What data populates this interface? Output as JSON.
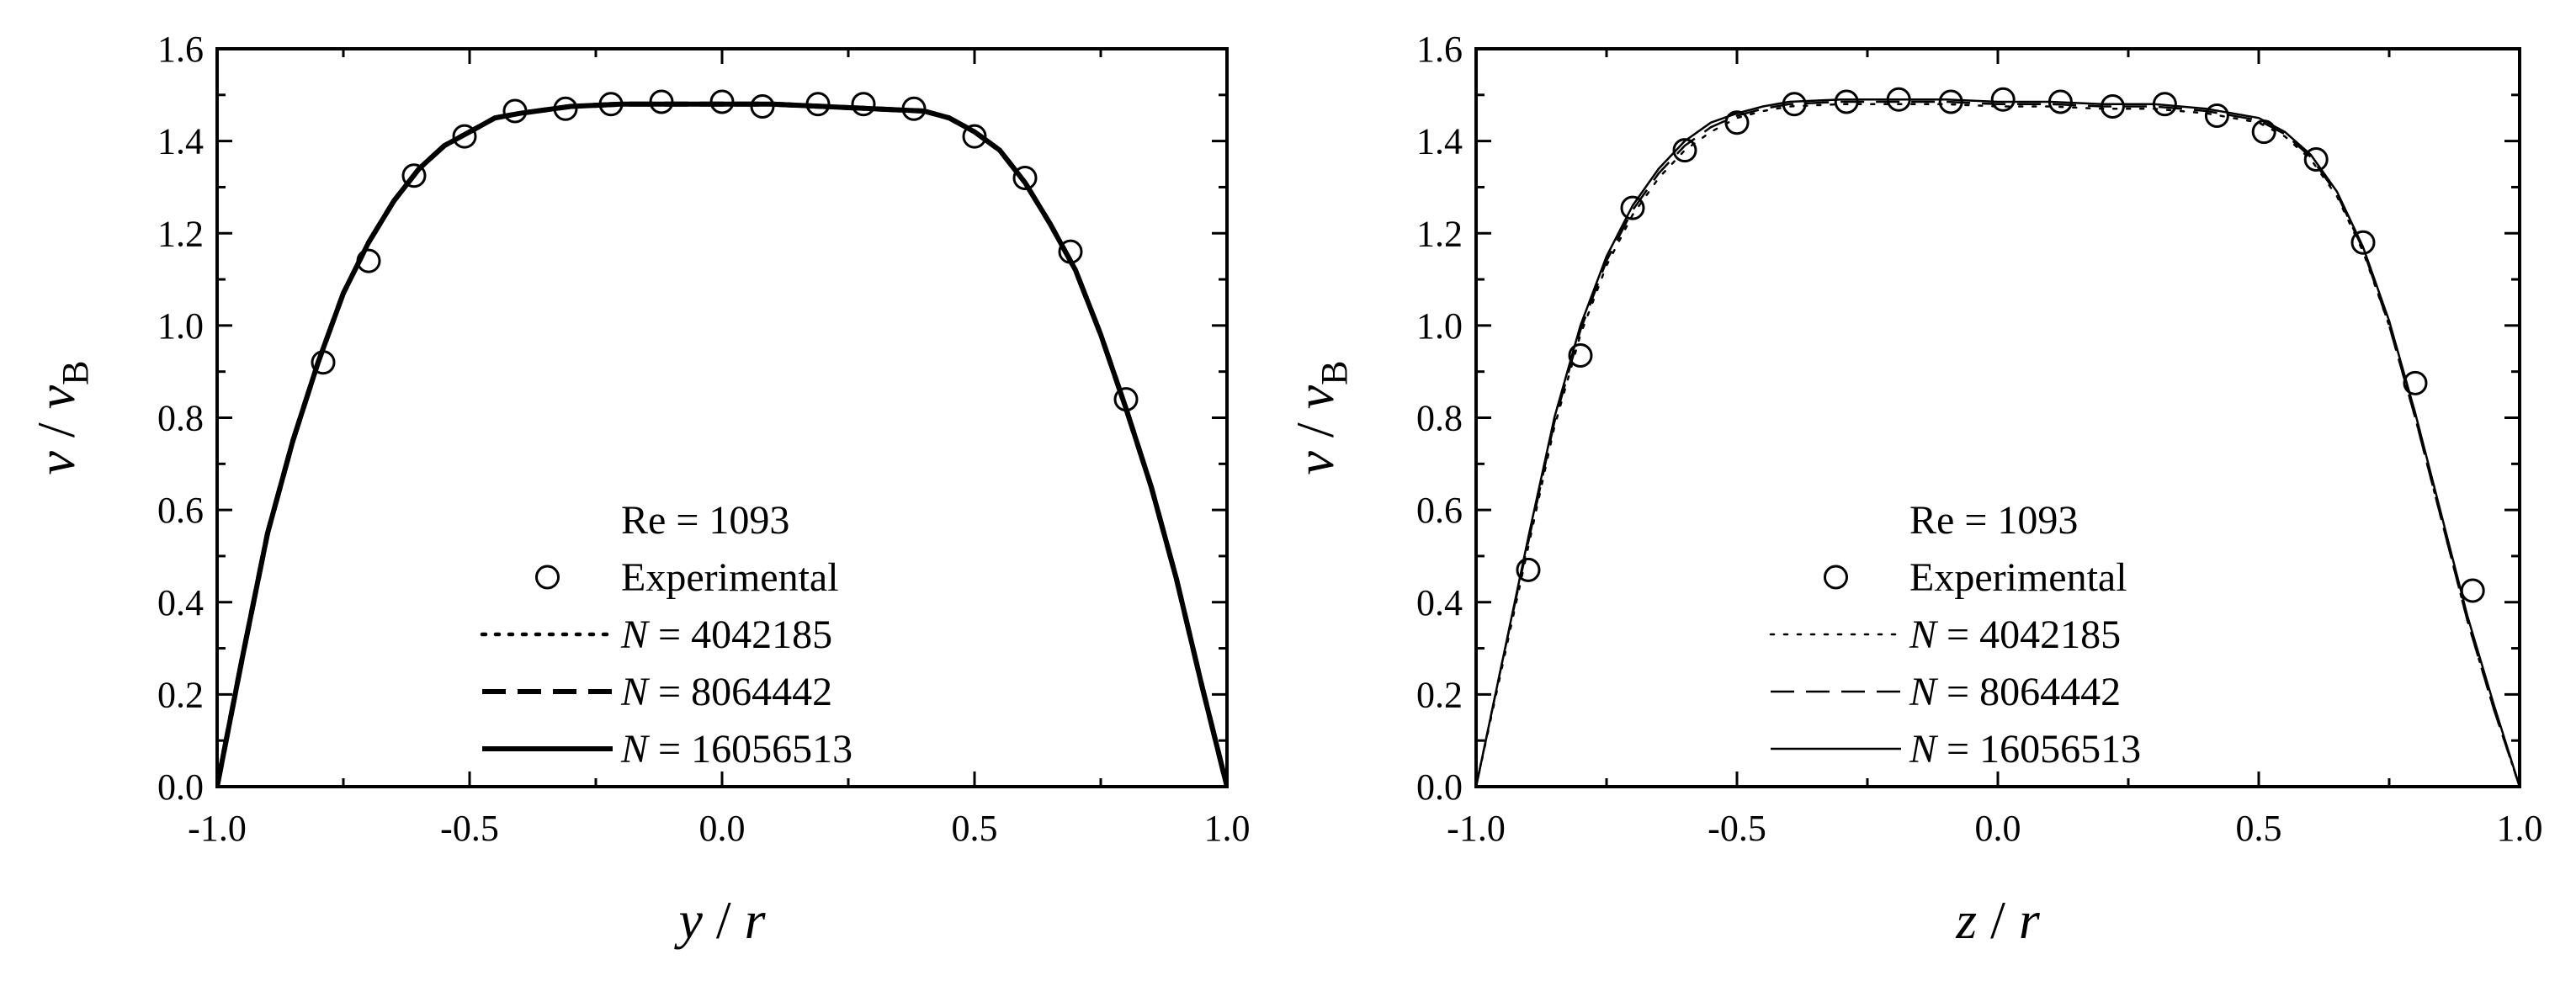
{
  "chart_data": [
    {
      "type": "line",
      "panel": "left",
      "xlabel": "y / r",
      "ylabel": "v / v_B",
      "xlim": [
        -1.0,
        1.0
      ],
      "ylim": [
        0.0,
        1.6
      ],
      "xticks": [
        "-1.0",
        "-0.5",
        "0.0",
        "0.5",
        "1.0"
      ],
      "yticks": [
        "0.0",
        "0.2",
        "0.4",
        "0.6",
        "0.8",
        "1.0",
        "1.2",
        "1.4",
        "1.6"
      ],
      "legend_title": "Re = 1093",
      "legend_position": "bottom-center",
      "series": [
        {
          "name": "Experimental",
          "style": "circle",
          "x": [
            -0.79,
            -0.7,
            -0.61,
            -0.51,
            -0.41,
            -0.31,
            -0.22,
            -0.12,
            0.0,
            0.08,
            0.19,
            0.28,
            0.38,
            0.5,
            0.6,
            0.69,
            0.8
          ],
          "y": [
            0.92,
            1.14,
            1.325,
            1.41,
            1.465,
            1.47,
            1.48,
            1.485,
            1.485,
            1.475,
            1.48,
            1.48,
            1.47,
            1.41,
            1.32,
            1.16,
            0.84
          ]
        },
        {
          "name": "N = 4042185",
          "style": "dotted",
          "x": [
            -1.0,
            -0.95,
            -0.9,
            -0.85,
            -0.8,
            -0.75,
            -0.7,
            -0.65,
            -0.6,
            -0.55,
            -0.5,
            -0.45,
            -0.4,
            -0.3,
            -0.2,
            -0.1,
            0.0,
            0.1,
            0.2,
            0.3,
            0.4,
            0.45,
            0.5,
            0.55,
            0.6,
            0.65,
            0.7,
            0.75,
            0.8,
            0.85,
            0.9,
            0.95,
            1.0
          ],
          "y": [
            0.0,
            0.28,
            0.55,
            0.75,
            0.92,
            1.07,
            1.18,
            1.27,
            1.34,
            1.39,
            1.42,
            1.45,
            1.46,
            1.475,
            1.48,
            1.48,
            1.48,
            1.48,
            1.475,
            1.47,
            1.465,
            1.45,
            1.42,
            1.38,
            1.31,
            1.22,
            1.12,
            0.98,
            0.82,
            0.65,
            0.45,
            0.22,
            0.0
          ]
        },
        {
          "name": "N = 8064442",
          "style": "dashed",
          "x": [
            -1.0,
            -0.95,
            -0.9,
            -0.85,
            -0.8,
            -0.75,
            -0.7,
            -0.65,
            -0.6,
            -0.55,
            -0.5,
            -0.45,
            -0.4,
            -0.3,
            -0.2,
            -0.1,
            0.0,
            0.1,
            0.2,
            0.3,
            0.4,
            0.45,
            0.5,
            0.55,
            0.6,
            0.65,
            0.7,
            0.75,
            0.8,
            0.85,
            0.9,
            0.95,
            1.0
          ],
          "y": [
            0.0,
            0.28,
            0.55,
            0.75,
            0.92,
            1.07,
            1.18,
            1.27,
            1.34,
            1.39,
            1.42,
            1.45,
            1.46,
            1.475,
            1.48,
            1.48,
            1.48,
            1.48,
            1.475,
            1.47,
            1.465,
            1.45,
            1.42,
            1.38,
            1.31,
            1.22,
            1.12,
            0.98,
            0.82,
            0.65,
            0.45,
            0.22,
            0.0
          ]
        },
        {
          "name": "N = 16056513",
          "style": "solid",
          "x": [
            -1.0,
            -0.95,
            -0.9,
            -0.85,
            -0.8,
            -0.75,
            -0.7,
            -0.65,
            -0.6,
            -0.55,
            -0.5,
            -0.45,
            -0.4,
            -0.3,
            -0.2,
            -0.1,
            0.0,
            0.1,
            0.2,
            0.3,
            0.4,
            0.45,
            0.5,
            0.55,
            0.6,
            0.65,
            0.7,
            0.75,
            0.8,
            0.85,
            0.9,
            0.95,
            1.0
          ],
          "y": [
            0.0,
            0.28,
            0.55,
            0.75,
            0.92,
            1.07,
            1.18,
            1.27,
            1.34,
            1.39,
            1.42,
            1.45,
            1.46,
            1.475,
            1.48,
            1.48,
            1.48,
            1.48,
            1.475,
            1.47,
            1.465,
            1.45,
            1.42,
            1.38,
            1.31,
            1.22,
            1.12,
            0.98,
            0.82,
            0.65,
            0.45,
            0.22,
            0.0
          ]
        }
      ]
    },
    {
      "type": "line",
      "panel": "right",
      "xlabel": "z / r",
      "ylabel": "v / v_B",
      "xlim": [
        -1.0,
        1.0
      ],
      "ylim": [
        0.0,
        1.6
      ],
      "xticks": [
        "-1.0",
        "-0.5",
        "0.0",
        "0.5",
        "1.0"
      ],
      "yticks": [
        "0.0",
        "0.2",
        "0.4",
        "0.6",
        "0.8",
        "1.0",
        "1.2",
        "1.4",
        "1.6"
      ],
      "legend_title": "Re = 1093",
      "legend_position": "bottom-center",
      "series": [
        {
          "name": "Experimental",
          "style": "circle",
          "x": [
            -0.9,
            -0.8,
            -0.7,
            -0.6,
            -0.5,
            -0.39,
            -0.29,
            -0.19,
            -0.09,
            0.01,
            0.12,
            0.22,
            0.32,
            0.42,
            0.51,
            0.61,
            0.7,
            0.8,
            0.91
          ],
          "y": [
            0.47,
            0.935,
            1.255,
            1.38,
            1.44,
            1.48,
            1.485,
            1.49,
            1.485,
            1.49,
            1.485,
            1.475,
            1.48,
            1.455,
            1.42,
            1.36,
            1.18,
            0.875,
            0.425
          ]
        },
        {
          "name": "N = 4042185",
          "style": "dotted",
          "x": [
            -1.0,
            -0.95,
            -0.9,
            -0.85,
            -0.8,
            -0.75,
            -0.7,
            -0.65,
            -0.6,
            -0.55,
            -0.5,
            -0.45,
            -0.4,
            -0.3,
            -0.2,
            -0.1,
            0.0,
            0.1,
            0.2,
            0.3,
            0.4,
            0.5,
            0.55,
            0.6,
            0.65,
            0.7,
            0.75,
            0.8,
            0.85,
            0.9,
            0.95,
            1.0
          ],
          "y": [
            0.0,
            0.26,
            0.52,
            0.78,
            0.98,
            1.13,
            1.24,
            1.32,
            1.38,
            1.42,
            1.45,
            1.465,
            1.475,
            1.48,
            1.48,
            1.48,
            1.475,
            1.475,
            1.47,
            1.47,
            1.46,
            1.44,
            1.41,
            1.36,
            1.28,
            1.16,
            1.0,
            0.8,
            0.58,
            0.36,
            0.17,
            0.0
          ]
        },
        {
          "name": "N = 8064442",
          "style": "dashed",
          "x": [
            -1.0,
            -0.95,
            -0.9,
            -0.85,
            -0.8,
            -0.75,
            -0.7,
            -0.65,
            -0.6,
            -0.55,
            -0.5,
            -0.45,
            -0.4,
            -0.3,
            -0.2,
            -0.1,
            0.0,
            0.1,
            0.2,
            0.3,
            0.4,
            0.5,
            0.55,
            0.6,
            0.65,
            0.7,
            0.75,
            0.8,
            0.85,
            0.9,
            0.95,
            1.0
          ],
          "y": [
            0.0,
            0.27,
            0.53,
            0.79,
            0.99,
            1.14,
            1.25,
            1.33,
            1.39,
            1.43,
            1.455,
            1.47,
            1.48,
            1.485,
            1.485,
            1.485,
            1.48,
            1.48,
            1.475,
            1.475,
            1.465,
            1.445,
            1.415,
            1.365,
            1.285,
            1.165,
            1.0,
            0.8,
            0.58,
            0.36,
            0.17,
            0.0
          ]
        },
        {
          "name": "N = 16056513",
          "style": "solid",
          "x": [
            -1.0,
            -0.95,
            -0.9,
            -0.85,
            -0.8,
            -0.75,
            -0.7,
            -0.65,
            -0.6,
            -0.55,
            -0.5,
            -0.45,
            -0.4,
            -0.3,
            -0.2,
            -0.1,
            0.0,
            0.1,
            0.2,
            0.3,
            0.4,
            0.5,
            0.55,
            0.6,
            0.65,
            0.7,
            0.75,
            0.8,
            0.85,
            0.9,
            0.95,
            1.0
          ],
          "y": [
            0.0,
            0.27,
            0.54,
            0.8,
            1.0,
            1.15,
            1.26,
            1.34,
            1.4,
            1.44,
            1.46,
            1.475,
            1.485,
            1.49,
            1.49,
            1.49,
            1.485,
            1.485,
            1.48,
            1.48,
            1.47,
            1.45,
            1.42,
            1.37,
            1.29,
            1.17,
            1.01,
            0.81,
            0.59,
            0.37,
            0.18,
            0.0
          ]
        }
      ]
    }
  ]
}
